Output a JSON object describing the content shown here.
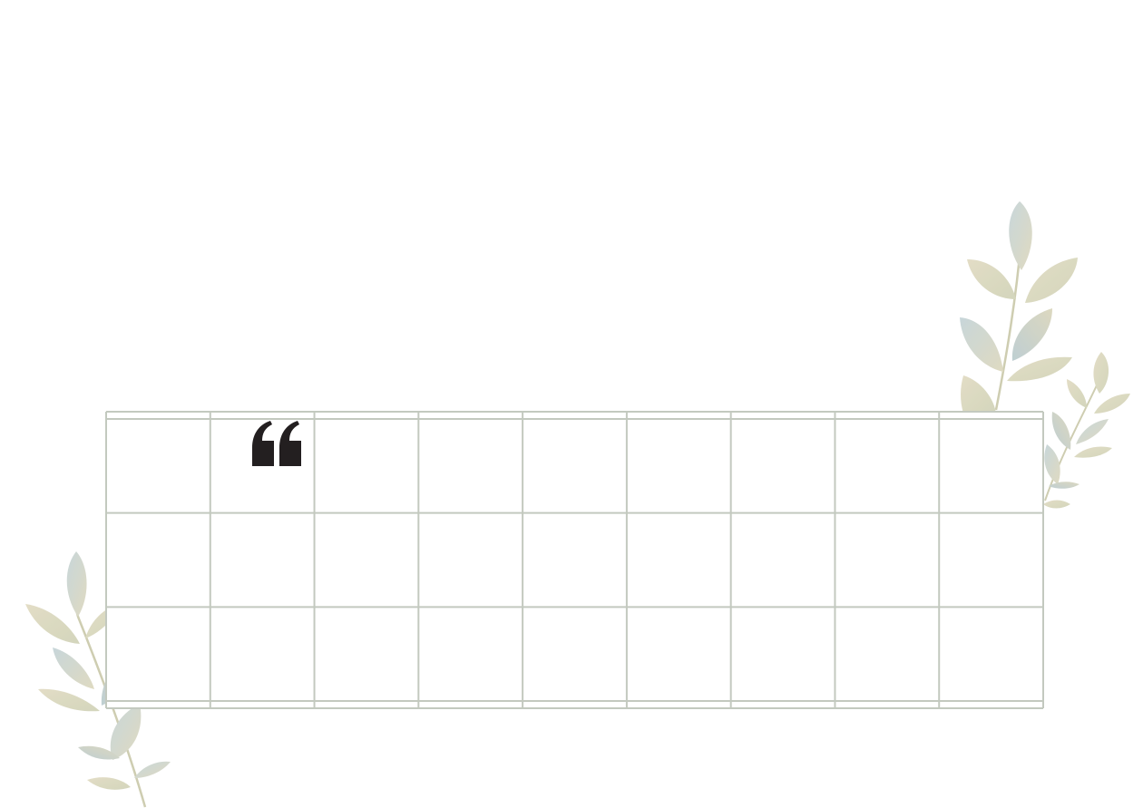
{
  "template": {
    "grid": {
      "columns": 9,
      "rows": 3,
      "line_color": "#c3c9bf",
      "cells_text": []
    },
    "quote_icon": "opening-quote-icon",
    "decoration": {
      "leaf_colors": [
        "#d8d2b6",
        "#b9c9cc",
        "#cfd3b8",
        "#bfd0d4",
        "#e1dbc2"
      ],
      "stem_color": "#c9c8a9"
    }
  }
}
